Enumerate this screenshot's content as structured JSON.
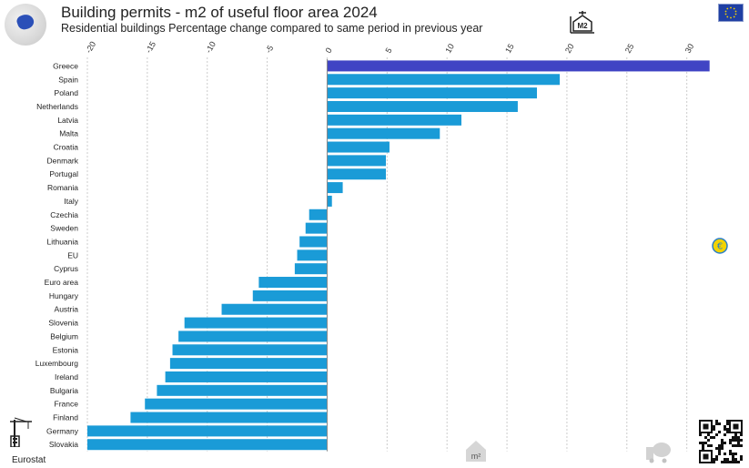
{
  "header": {
    "title": "Building permits - m2 of useful floor area 2024",
    "subtitle": "Residential buildings  Percentage change compared to same period in previous year"
  },
  "footer": {
    "source": "Eurostat"
  },
  "icons": {
    "globe": "globe-europe-icon",
    "m2": "m2-area-icon",
    "flag": "eu-flag-icon",
    "euro": "euro-badge-icon",
    "crane": "crane-icon",
    "house": "house-m2-icon",
    "mixer": "cement-mixer-icon",
    "qr": "qr-code-icon",
    "m2_text": "M2",
    "house_text": "m²"
  },
  "colors": {
    "bar": "#1a9bd7",
    "highlight": "#4044c4",
    "grid": "#cccccc"
  },
  "chart_data": {
    "type": "bar",
    "orientation": "horizontal",
    "title": "Building permits - m2 of useful floor area 2024",
    "subtitle": "Residential buildings  Percentage change compared to same period in previous year",
    "xlim": [
      -20,
      32
    ],
    "xticks": [
      -20,
      -15,
      -10,
      -5,
      0,
      5,
      10,
      15,
      20,
      25,
      30
    ],
    "grid": true,
    "highlight": "Greece",
    "categories": [
      "Greece",
      "Spain",
      "Poland",
      "Netherlands",
      "Latvia",
      "Malta",
      "Croatia",
      "Denmark",
      "Portugal",
      "Romania",
      "Italy",
      "Czechia",
      "Sweden",
      "Lithuania",
      "EU",
      "Cyprus",
      "Euro area",
      "Hungary",
      "Austria",
      "Slovenia",
      "Belgium",
      "Estonia",
      "Luxembourg",
      "Ireland",
      "Bulgaria",
      "France",
      "Finland",
      "Germany",
      "Slovakia"
    ],
    "values": [
      31.9,
      19.4,
      17.5,
      15.9,
      11.2,
      9.4,
      5.2,
      4.9,
      4.9,
      1.3,
      0.4,
      -1.5,
      -1.8,
      -2.3,
      -2.5,
      -2.7,
      -5.7,
      -6.2,
      -8.8,
      -11.9,
      -12.4,
      -12.9,
      -13.1,
      -13.5,
      -14.2,
      -15.2,
      -16.4,
      -20.0,
      -20.0
    ]
  }
}
